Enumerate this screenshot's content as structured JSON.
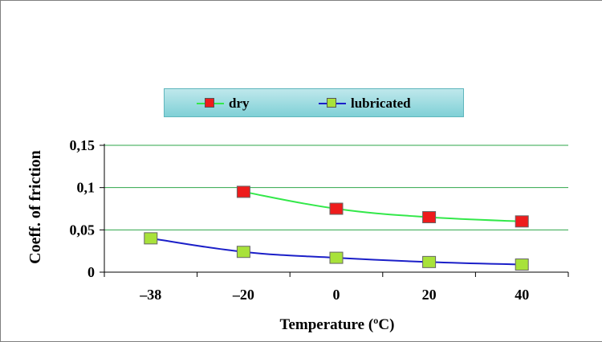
{
  "chart_data": {
    "type": "line",
    "xlabel": "Temperature (ºC)",
    "ylabel": "Coeff. of friction",
    "categories": [
      "-38",
      "-20",
      "0",
      "20",
      "40"
    ],
    "ylim": [
      0,
      0.15
    ],
    "yticks": [
      "0",
      "0,05",
      "0,1",
      "0,15"
    ],
    "grid": true,
    "legend_position": "top-center",
    "series": [
      {
        "name": "dry",
        "line_color": "#33e84a",
        "marker_color": "#ee1c1c",
        "values": [
          null,
          0.095,
          0.075,
          0.065,
          0.06
        ]
      },
      {
        "name": "lubricated",
        "line_color": "#1b1fc8",
        "marker_color": "#a8e23a",
        "values": [
          0.04,
          0.024,
          0.017,
          0.012,
          0.009
        ]
      }
    ]
  }
}
